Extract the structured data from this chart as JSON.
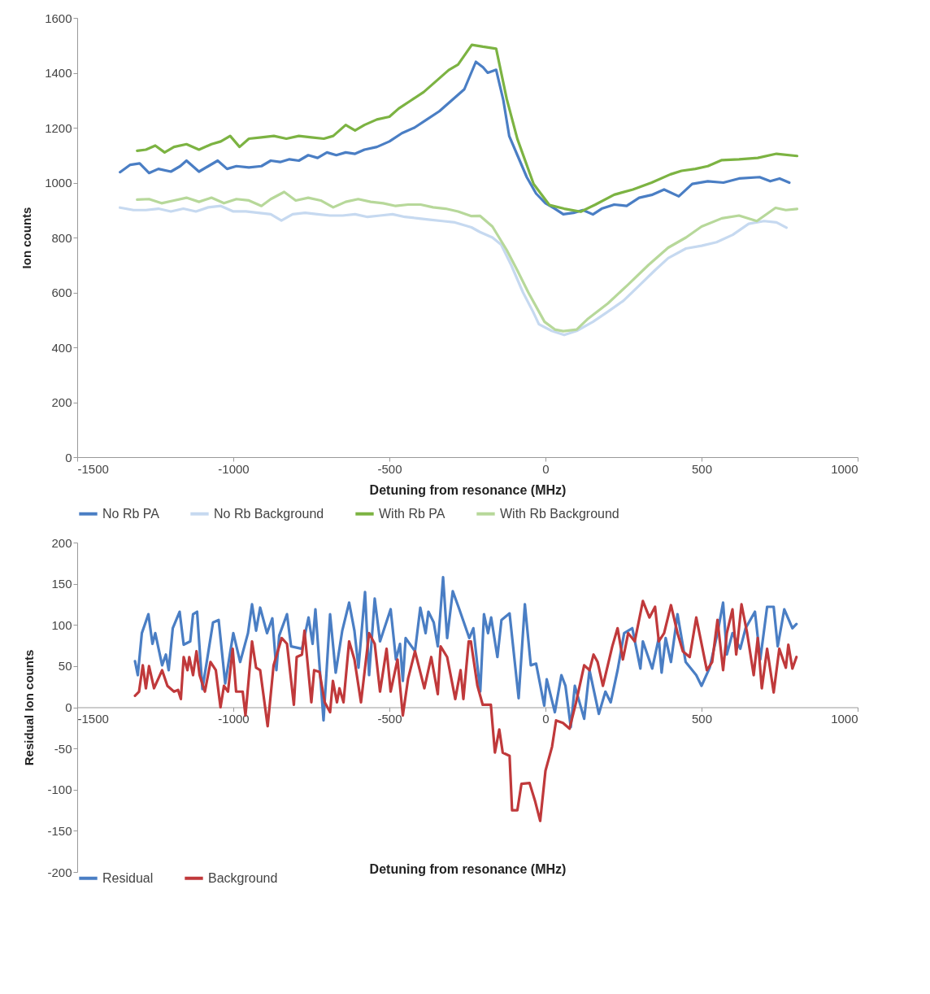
{
  "chart_data": [
    {
      "type": "line",
      "xlabel": "Detuning from resonance (MHz)",
      "ylabel": "Ion counts",
      "xlim": [
        -1500,
        1000
      ],
      "xticks": [
        -1500,
        -1000,
        -500,
        0,
        500,
        1000
      ],
      "ylim": [
        0,
        1600
      ],
      "yticks": [
        0,
        200,
        400,
        600,
        800,
        1000,
        1200,
        1400,
        1600
      ],
      "grid": false,
      "legend": "bottom",
      "line_style": "solid",
      "marker": "none",
      "series": [
        {
          "name": "No Rb PA",
          "color": "#4a7ec4",
          "x": [
            -1363,
            -1330,
            -1300,
            -1270,
            -1240,
            -1200,
            -1170,
            -1150,
            -1110,
            -1080,
            -1050,
            -1020,
            -990,
            -950,
            -910,
            -880,
            -850,
            -820,
            -790,
            -760,
            -730,
            -700,
            -670,
            -640,
            -610,
            -580,
            -540,
            -500,
            -460,
            -420,
            -380,
            -340,
            -300,
            -260,
            -223,
            -200,
            -185,
            -158,
            -135,
            -116,
            -90,
            -60,
            -30,
            0,
            30,
            57,
            90,
            120,
            152,
            180,
            220,
            260,
            300,
            340,
            380,
            427,
            470,
            520,
            570,
            620,
            686,
            720,
            750,
            781
          ],
          "values": [
            1038,
            1065,
            1070,
            1035,
            1050,
            1040,
            1060,
            1080,
            1040,
            1060,
            1080,
            1050,
            1060,
            1055,
            1060,
            1080,
            1075,
            1085,
            1080,
            1100,
            1090,
            1110,
            1100,
            1110,
            1105,
            1120,
            1130,
            1150,
            1180,
            1200,
            1230,
            1260,
            1300,
            1340,
            1440,
            1420,
            1400,
            1411,
            1300,
            1169,
            1100,
            1020,
            960,
            925,
            905,
            885,
            890,
            900,
            884,
            905,
            920,
            915,
            945,
            955,
            975,
            950,
            995,
            1005,
            1000,
            1015,
            1020,
            1005,
            1015,
            1000
          ]
        },
        {
          "name": "No Rb Background",
          "color": "#c6d9f0",
          "x": [
            -1363,
            -1320,
            -1280,
            -1240,
            -1200,
            -1160,
            -1120,
            -1080,
            -1040,
            -1000,
            -960,
            -920,
            -880,
            -846,
            -810,
            -770,
            -730,
            -690,
            -650,
            -610,
            -570,
            -530,
            -490,
            -450,
            -410,
            -370,
            -330,
            -290,
            -237,
            -210,
            -170,
            -142,
            -110,
            -72,
            -40,
            -21,
            20,
            60,
            100,
            152,
            200,
            250,
            300,
            350,
            393,
            450,
            500,
            548,
            600,
            651,
            700,
            740,
            772
          ],
          "values": [
            909,
            900,
            900,
            905,
            895,
            905,
            895,
            910,
            915,
            895,
            895,
            890,
            885,
            862,
            885,
            890,
            885,
            880,
            880,
            885,
            875,
            880,
            885,
            875,
            870,
            865,
            860,
            855,
            837,
            820,
            800,
            774,
            700,
            600,
            530,
            484,
            460,
            445,
            460,
            493,
            530,
            570,
            625,
            680,
            725,
            760,
            770,
            783,
            810,
            850,
            860,
            855,
            836
          ]
        },
        {
          "name": "With Rb PA",
          "color": "#7cb342",
          "x": [
            -1308,
            -1280,
            -1250,
            -1220,
            -1190,
            -1150,
            -1110,
            -1070,
            -1040,
            -1010,
            -980,
            -950,
            -910,
            -870,
            -830,
            -790,
            -750,
            -710,
            -680,
            -640,
            -610,
            -580,
            -540,
            -500,
            -470,
            -430,
            -390,
            -350,
            -310,
            -280,
            -236,
            -200,
            -158,
            -124,
            -90,
            -38,
            13,
            60,
            113,
            160,
            220,
            280,
            340,
            400,
            436,
            480,
            520,
            565,
            620,
            680,
            740,
            806
          ],
          "values": [
            1116,
            1120,
            1135,
            1110,
            1130,
            1140,
            1120,
            1140,
            1150,
            1170,
            1130,
            1160,
            1165,
            1170,
            1160,
            1170,
            1165,
            1160,
            1170,
            1210,
            1190,
            1210,
            1230,
            1240,
            1270,
            1300,
            1330,
            1370,
            1410,
            1430,
            1502,
            1495,
            1488,
            1304,
            1159,
            995,
            918,
            905,
            894,
            920,
            956,
            975,
            1000,
            1030,
            1043,
            1050,
            1060,
            1082,
            1085,
            1090,
            1105,
            1097
          ]
        },
        {
          "name": "With Rb Background",
          "color": "#b7d89a",
          "x": [
            -1308,
            -1270,
            -1230,
            -1190,
            -1150,
            -1110,
            -1070,
            -1030,
            -990,
            -950,
            -910,
            -880,
            -837,
            -800,
            -760,
            -720,
            -680,
            -640,
            -600,
            -560,
            -520,
            -480,
            -440,
            -400,
            -360,
            -320,
            -280,
            -237,
            -210,
            -170,
            -124,
            -90,
            -55,
            -3,
            30,
            57,
            100,
            134,
            200,
            264,
            330,
            393,
            450,
            500,
            565,
            620,
            677,
            737,
            770,
            806
          ],
          "values": [
            938,
            940,
            925,
            935,
            945,
            930,
            945,
            925,
            940,
            935,
            915,
            940,
            966,
            935,
            945,
            935,
            910,
            930,
            940,
            930,
            925,
            915,
            920,
            920,
            910,
            905,
            895,
            878,
            879,
            840,
            754,
            680,
            600,
            493,
            465,
            459,
            465,
            502,
            560,
            628,
            700,
            763,
            800,
            840,
            870,
            880,
            860,
            908,
            900,
            904
          ]
        }
      ]
    },
    {
      "type": "line",
      "xlabel": "Detuning from resonance (MHz)",
      "ylabel": "Residual Ion counts",
      "xlim": [
        -1500,
        1000
      ],
      "xticks": [
        -1500,
        -1000,
        -500,
        0,
        500,
        1000
      ],
      "ylim": [
        -200,
        200
      ],
      "yticks": [
        -200,
        -150,
        -100,
        -50,
        0,
        50,
        100,
        150,
        200
      ],
      "grid": false,
      "legend": "bottom",
      "line_style": "solid",
      "marker": "none",
      "series": [
        {
          "name": "Residual",
          "color": "#4a7ec4",
          "x": [
            -1315,
            -1306,
            -1293,
            -1272,
            -1259,
            -1250,
            -1228,
            -1216,
            -1207,
            -1194,
            -1172,
            -1159,
            -1138,
            -1129,
            -1116,
            -1099,
            -1065,
            -1047,
            -1026,
            -1000,
            -978,
            -953,
            -940,
            -927,
            -914,
            -892,
            -875,
            -862,
            -853,
            -828,
            -815,
            -780,
            -759,
            -746,
            -737,
            -711,
            -690,
            -672,
            -651,
            -629,
            -612,
            -599,
            -578,
            -565,
            -547,
            -530,
            -496,
            -479,
            -466,
            -457,
            -448,
            -418,
            -401,
            -384,
            -375,
            -358,
            -345,
            -328,
            -315,
            -297,
            -276,
            -244,
            -231,
            -209,
            -197,
            -184,
            -174,
            -154,
            -141,
            -115,
            -86,
            -66,
            -47,
            -30,
            -4,
            4,
            30,
            51,
            64,
            81,
            94,
            124,
            141,
            171,
            192,
            209,
            231,
            252,
            278,
            304,
            312,
            342,
            363,
            372,
            385,
            402,
            423,
            449,
            483,
            500,
            526,
            551,
            569,
            581,
            599,
            624,
            641,
            671,
            688,
            710,
            731,
            744,
            765,
            791,
            804
          ],
          "values": [
            56,
            39,
            90,
            113,
            77,
            90,
            51,
            64,
            45,
            96,
            116,
            76,
            80,
            113,
            116,
            22,
            103,
            106,
            29,
            90,
            55,
            90,
            125,
            93,
            121,
            90,
            108,
            45,
            87,
            113,
            74,
            71,
            109,
            77,
            119,
            -16,
            113,
            42,
            93,
            127,
            93,
            48,
            140,
            39,
            132,
            80,
            119,
            58,
            77,
            32,
            84,
            68,
            121,
            90,
            116,
            103,
            74,
            158,
            84,
            141,
            119,
            84,
            96,
            19,
            113,
            90,
            109,
            61,
            106,
            114,
            11,
            125,
            51,
            53,
            2,
            34,
            -6,
            39,
            26,
            -24,
            26,
            -14,
            45,
            -8,
            19,
            6,
            45,
            90,
            96,
            47,
            80,
            47,
            84,
            42,
            84,
            55,
            113,
            55,
            39,
            26,
            48,
            90,
            127,
            64,
            90,
            71,
            96,
            116,
            58,
            122,
            122,
            74,
            119,
            96,
            101
          ]
        },
        {
          "name": "Background",
          "color": "#c0393b",
          "x": [
            -1315,
            -1302,
            -1290,
            -1280,
            -1270,
            -1254,
            -1228,
            -1211,
            -1190,
            -1177,
            -1168,
            -1159,
            -1147,
            -1141,
            -1129,
            -1118,
            -1108,
            -1091,
            -1073,
            -1056,
            -1041,
            -1030,
            -1017,
            -1002,
            -991,
            -970,
            -961,
            -940,
            -927,
            -914,
            -890,
            -871,
            -845,
            -828,
            -806,
            -797,
            -780,
            -772,
            -750,
            -741,
            -724,
            -707,
            -690,
            -681,
            -668,
            -660,
            -647,
            -629,
            -612,
            -591,
            -565,
            -547,
            -530,
            -509,
            -496,
            -474,
            -457,
            -440,
            -418,
            -388,
            -366,
            -345,
            -336,
            -315,
            -289,
            -272,
            -263,
            -246,
            -239,
            -218,
            -201,
            -175,
            -162,
            -148,
            -137,
            -115,
            -107,
            -90,
            -77,
            -51,
            -34,
            -17,
            0,
            21,
            34,
            56,
            77,
            98,
            124,
            141,
            154,
            167,
            184,
            214,
            231,
            248,
            265,
            286,
            312,
            333,
            351,
            363,
            380,
            402,
            423,
            440,
            462,
            483,
            517,
            534,
            551,
            569,
            581,
            599,
            611,
            628,
            646,
            667,
            680,
            693,
            710,
            731,
            749,
            770,
            778,
            791,
            804
          ],
          "values": [
            14,
            19,
            51,
            23,
            50,
            23,
            45,
            26,
            19,
            21,
            10,
            61,
            45,
            61,
            39,
            68,
            39,
            19,
            55,
            45,
            0,
            26,
            19,
            71,
            19,
            19,
            -10,
            80,
            48,
            45,
            -23,
            51,
            84,
            77,
            3,
            61,
            64,
            93,
            6,
            45,
            43,
            6,
            -6,
            32,
            6,
            23,
            6,
            80,
            58,
            6,
            90,
            77,
            19,
            71,
            19,
            58,
            -10,
            35,
            68,
            23,
            61,
            16,
            74,
            61,
            10,
            45,
            10,
            80,
            80,
            26,
            3,
            3,
            -55,
            -27,
            -55,
            -59,
            -125,
            -125,
            -93,
            -92,
            -113,
            -138,
            -77,
            -48,
            -16,
            -19,
            -26,
            6,
            51,
            45,
            64,
            55,
            26,
            74,
            96,
            58,
            90,
            80,
            129,
            109,
            122,
            80,
            90,
            124,
            90,
            68,
            61,
            109,
            45,
            55,
            106,
            45,
            90,
            119,
            64,
            125,
            90,
            39,
            84,
            23,
            71,
            18,
            71,
            48,
            76,
            47,
            61
          ]
        }
      ]
    }
  ]
}
